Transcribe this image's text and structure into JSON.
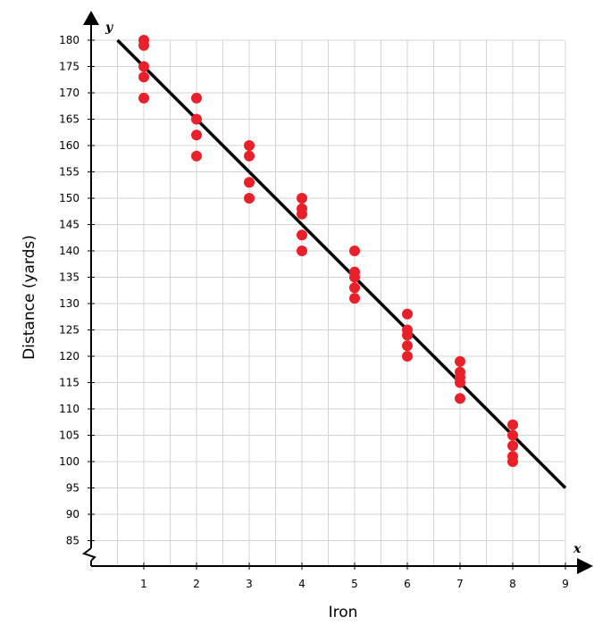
{
  "chart_data": {
    "type": "scatter",
    "title": "",
    "xlabel": "Iron",
    "ylabel": "Distance (yards)",
    "x_axis_var": "x",
    "y_axis_var": "y",
    "xlim": [
      0,
      9
    ],
    "ylim": [
      85,
      180
    ],
    "x_ticks": [
      1,
      2,
      3,
      4,
      5,
      6,
      7,
      8,
      9
    ],
    "y_ticks": [
      85,
      90,
      95,
      100,
      105,
      110,
      115,
      120,
      125,
      130,
      135,
      140,
      145,
      150,
      155,
      160,
      165,
      170,
      175,
      180
    ],
    "y_axis_break": true,
    "grid": true,
    "colors": {
      "points": "#e8202a",
      "line": "#000000",
      "grid": "#d3d3d3",
      "axis": "#000000"
    },
    "points": [
      {
        "x": 1,
        "y": 180
      },
      {
        "x": 1,
        "y": 179
      },
      {
        "x": 1,
        "y": 175
      },
      {
        "x": 1,
        "y": 173
      },
      {
        "x": 1,
        "y": 169
      },
      {
        "x": 2,
        "y": 169
      },
      {
        "x": 2,
        "y": 165
      },
      {
        "x": 2,
        "y": 162
      },
      {
        "x": 2,
        "y": 158
      },
      {
        "x": 3,
        "y": 160
      },
      {
        "x": 3,
        "y": 158
      },
      {
        "x": 3,
        "y": 153
      },
      {
        "x": 3,
        "y": 150
      },
      {
        "x": 4,
        "y": 150
      },
      {
        "x": 4,
        "y": 148
      },
      {
        "x": 4,
        "y": 147
      },
      {
        "x": 4,
        "y": 143
      },
      {
        "x": 4,
        "y": 140
      },
      {
        "x": 5,
        "y": 140
      },
      {
        "x": 5,
        "y": 136
      },
      {
        "x": 5,
        "y": 135
      },
      {
        "x": 5,
        "y": 133
      },
      {
        "x": 5,
        "y": 131
      },
      {
        "x": 6,
        "y": 128
      },
      {
        "x": 6,
        "y": 125
      },
      {
        "x": 6,
        "y": 124
      },
      {
        "x": 6,
        "y": 122
      },
      {
        "x": 6,
        "y": 120
      },
      {
        "x": 7,
        "y": 119
      },
      {
        "x": 7,
        "y": 117
      },
      {
        "x": 7,
        "y": 116
      },
      {
        "x": 7,
        "y": 115
      },
      {
        "x": 7,
        "y": 112
      },
      {
        "x": 8,
        "y": 107
      },
      {
        "x": 8,
        "y": 105
      },
      {
        "x": 8,
        "y": 103
      },
      {
        "x": 8,
        "y": 101
      },
      {
        "x": 8,
        "y": 100
      }
    ],
    "trend_line": [
      {
        "x": 0.5,
        "y": 180
      },
      {
        "x": 9,
        "y": 95
      }
    ]
  }
}
